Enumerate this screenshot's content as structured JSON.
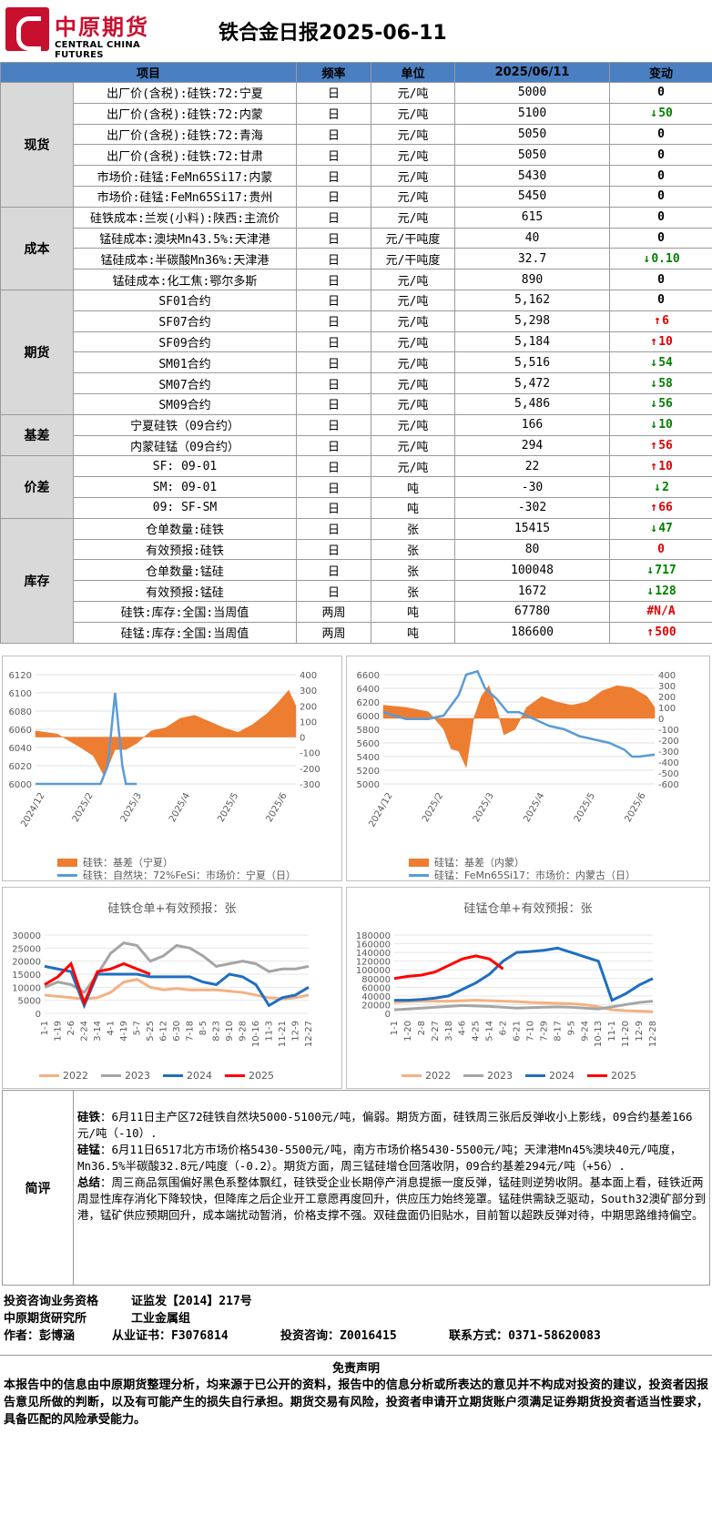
{
  "header": {
    "logo_cn": "中原期货",
    "logo_en": "CENTRAL CHINA FUTURES",
    "title": "铁合金日报2025-06-11"
  },
  "table": {
    "columns": [
      "项目",
      "频率",
      "单位",
      "2025/06/11",
      "变动"
    ],
    "groups": [
      {
        "category": "现货",
        "rows": [
          {
            "item": "出厂价(含税):硅铁:72:宁夏",
            "freq": "日",
            "unit": "元/吨",
            "value": "5000",
            "change": "0",
            "dir": "zero"
          },
          {
            "item": "出厂价(含税):硅铁:72:内蒙",
            "freq": "日",
            "unit": "元/吨",
            "value": "5100",
            "change": "50",
            "dir": "down"
          },
          {
            "item": "出厂价(含税):硅铁:72:青海",
            "freq": "日",
            "unit": "元/吨",
            "value": "5050",
            "change": "0",
            "dir": "zero"
          },
          {
            "item": "出厂价(含税):硅铁:72:甘肃",
            "freq": "日",
            "unit": "元/吨",
            "value": "5050",
            "change": "0",
            "dir": "zero"
          },
          {
            "item": "市场价:硅锰:FeMn65Si17:内蒙",
            "freq": "日",
            "unit": "元/吨",
            "value": "5430",
            "change": "0",
            "dir": "zero"
          },
          {
            "item": "市场价:硅锰:FeMn65Si17:贵州",
            "freq": "日",
            "unit": "元/吨",
            "value": "5450",
            "change": "0",
            "dir": "zero"
          }
        ]
      },
      {
        "category": "成本",
        "rows": [
          {
            "item": "硅铁成本:兰炭(小料):陕西:主流价",
            "freq": "日",
            "unit": "元/吨",
            "value": "615",
            "change": "0",
            "dir": "zero"
          },
          {
            "item": "锰硅成本:澳块Mn43.5%:天津港",
            "freq": "日",
            "unit": "元/干吨度",
            "value": "40",
            "change": "0",
            "dir": "zero"
          },
          {
            "item": "锰硅成本:半碳酸Mn36%:天津港",
            "freq": "日",
            "unit": "元/干吨度",
            "value": "32.7",
            "change": "0.10",
            "dir": "down"
          },
          {
            "item": "锰硅成本:化工焦:鄂尔多斯",
            "freq": "日",
            "unit": "元/吨",
            "value": "890",
            "change": "0",
            "dir": "zero"
          }
        ]
      },
      {
        "category": "期货",
        "rows": [
          {
            "item": "SF01合约",
            "freq": "日",
            "unit": "元/吨",
            "value": "5,162",
            "change": "0",
            "dir": "zero"
          },
          {
            "item": "SF07合约",
            "freq": "日",
            "unit": "元/吨",
            "value": "5,298",
            "change": "6",
            "dir": "up"
          },
          {
            "item": "SF09合约",
            "freq": "日",
            "unit": "元/吨",
            "value": "5,184",
            "change": "10",
            "dir": "up"
          },
          {
            "item": "SM01合约",
            "freq": "日",
            "unit": "元/吨",
            "value": "5,516",
            "change": "54",
            "dir": "down"
          },
          {
            "item": "SM07合约",
            "freq": "日",
            "unit": "元/吨",
            "value": "5,472",
            "change": "58",
            "dir": "down"
          },
          {
            "item": "SM09合约",
            "freq": "日",
            "unit": "元/吨",
            "value": "5,486",
            "change": "56",
            "dir": "down"
          }
        ]
      },
      {
        "category": "基差",
        "rows": [
          {
            "item": "宁夏硅铁（09合约）",
            "freq": "日",
            "unit": "元/吨",
            "value": "166",
            "change": "10",
            "dir": "down"
          },
          {
            "item": "内蒙硅锰（09合约）",
            "freq": "日",
            "unit": "元/吨",
            "value": "294",
            "change": "56",
            "dir": "up"
          }
        ]
      },
      {
        "category": "价差",
        "rows": [
          {
            "item": "SF: 09-01",
            "freq": "日",
            "unit": "元/吨",
            "value": "22",
            "change": "10",
            "dir": "up"
          },
          {
            "item": "SM: 09-01",
            "freq": "日",
            "unit": "吨",
            "value": "-30",
            "change": "2",
            "dir": "down"
          },
          {
            "item": "09: SF-SM",
            "freq": "日",
            "unit": "吨",
            "value": "-302",
            "change": "66",
            "dir": "up"
          }
        ]
      },
      {
        "category": "库存",
        "rows": [
          {
            "item": "仓单数量:硅铁",
            "freq": "日",
            "unit": "张",
            "value": "15415",
            "change": "47",
            "dir": "down"
          },
          {
            "item": "有效预报:硅铁",
            "freq": "日",
            "unit": "张",
            "value": "80",
            "change": "0",
            "dir": "zero-red"
          },
          {
            "item": "仓单数量:锰硅",
            "freq": "日",
            "unit": "张",
            "value": "100048",
            "change": "717",
            "dir": "down"
          },
          {
            "item": "有效预报:锰硅",
            "freq": "日",
            "unit": "张",
            "value": "1672",
            "change": "128",
            "dir": "down"
          },
          {
            "item": "硅铁:库存:全国:当周值",
            "freq": "两周",
            "unit": "吨",
            "value": "67780",
            "change": "#N/A",
            "dir": "na"
          },
          {
            "item": "硅锰:库存:全国:当周值",
            "freq": "两周",
            "unit": "吨",
            "value": "186600",
            "change": "500",
            "dir": "up"
          }
        ]
      }
    ]
  },
  "colors": {
    "up": "#e00000",
    "down": "#008000",
    "header_blue": "#4a7fc1",
    "bar_orange": "#ed7d31",
    "line_blue": "#5b9bd5"
  },
  "chart_data": [
    {
      "type": "bar+line",
      "xlabels": [
        "2024/12",
        "2025/2",
        "2025/3",
        "2025/4",
        "2025/5",
        "2025/6"
      ],
      "y_left": [
        6000,
        6020,
        6040,
        6060,
        6080,
        6100,
        6120
      ],
      "y_right": [
        -300,
        -200,
        -100,
        0,
        100,
        200,
        300,
        400
      ],
      "legend": [
        "硅铁：基差（宁夏）",
        "硅铁：自然块：72%FeSi：市场价：宁夏（日）"
      ],
      "line_points": [
        [
          0,
          6000
        ],
        [
          8,
          6000
        ],
        [
          14,
          6000
        ],
        [
          18,
          6000
        ],
        [
          20,
          6020
        ],
        [
          21,
          6060
        ],
        [
          22,
          6100
        ],
        [
          23,
          6060
        ],
        [
          24,
          6020
        ],
        [
          25,
          6000
        ],
        [
          28,
          6000
        ]
      ],
      "bar_points": [
        [
          0,
          40
        ],
        [
          6,
          20
        ],
        [
          12,
          -60
        ],
        [
          16,
          -120
        ],
        [
          19,
          -250
        ],
        [
          22,
          -80
        ],
        [
          25,
          -80
        ],
        [
          28,
          -40
        ],
        [
          32,
          40
        ],
        [
          36,
          60
        ],
        [
          40,
          120
        ],
        [
          44,
          140
        ],
        [
          48,
          100
        ],
        [
          52,
          60
        ],
        [
          56,
          30
        ],
        [
          60,
          80
        ],
        [
          64,
          150
        ],
        [
          67,
          220
        ],
        [
          70,
          300
        ],
        [
          72,
          200
        ]
      ]
    },
    {
      "type": "bar+line",
      "xlabels": [
        "2024/12",
        "2025/2",
        "2025/3",
        "2025/4",
        "2025/5",
        "2025/6"
      ],
      "y_left": [
        5000,
        5200,
        5400,
        5600,
        5800,
        6000,
        6200,
        6400,
        6600
      ],
      "y_right": [
        -600,
        -500,
        -400,
        -300,
        -200,
        -100,
        0,
        100,
        200,
        300,
        400
      ],
      "legend": [
        "硅锰：基差（内蒙）",
        "硅锰：FeMn65Si17：市场价：内蒙古（日）"
      ],
      "line_points": [
        [
          0,
          6050
        ],
        [
          6,
          5950
        ],
        [
          12,
          5950
        ],
        [
          16,
          6000
        ],
        [
          20,
          6300
        ],
        [
          22,
          6600
        ],
        [
          25,
          6650
        ],
        [
          27,
          6400
        ],
        [
          30,
          6250
        ],
        [
          33,
          6050
        ],
        [
          36,
          6050
        ],
        [
          40,
          5950
        ],
        [
          44,
          5850
        ],
        [
          48,
          5800
        ],
        [
          52,
          5700
        ],
        [
          56,
          5650
        ],
        [
          60,
          5600
        ],
        [
          64,
          5500
        ],
        [
          66,
          5400
        ],
        [
          68,
          5400
        ],
        [
          72,
          5430
        ]
      ],
      "bar_points": [
        [
          0,
          120
        ],
        [
          6,
          100
        ],
        [
          12,
          60
        ],
        [
          16,
          -100
        ],
        [
          18,
          -280
        ],
        [
          20,
          -300
        ],
        [
          22,
          -450
        ],
        [
          24,
          0
        ],
        [
          26,
          200
        ],
        [
          28,
          300
        ],
        [
          30,
          100
        ],
        [
          32,
          -150
        ],
        [
          35,
          -100
        ],
        [
          38,
          100
        ],
        [
          42,
          200
        ],
        [
          46,
          150
        ],
        [
          50,
          120
        ],
        [
          54,
          150
        ],
        [
          58,
          250
        ],
        [
          62,
          300
        ],
        [
          66,
          280
        ],
        [
          70,
          200
        ],
        [
          72,
          100
        ]
      ]
    },
    {
      "type": "line",
      "title": "硅铁仓单+有效预报：张",
      "xlabels": [
        "1-1",
        "1-19",
        "2-6",
        "2-24",
        "3-14",
        "4-1",
        "4-19",
        "5-7",
        "5-25",
        "6-12",
        "6-30",
        "7-18",
        "8-5",
        "8-23",
        "9-10",
        "9-28",
        "10-16",
        "11-3",
        "11-21",
        "12-9",
        "12-27"
      ],
      "y_ticks": [
        0,
        5000,
        10000,
        15000,
        20000,
        25000,
        30000
      ],
      "series": [
        {
          "name": "2022",
          "color": "#f4b183",
          "values": [
            7000,
            6500,
            6000,
            5500,
            6000,
            8000,
            12000,
            13000,
            10000,
            9000,
            9500,
            9000,
            9000,
            9000,
            8500,
            8000,
            7000,
            6000,
            5500,
            6000,
            7000
          ]
        },
        {
          "name": "2023",
          "color": "#a5a5a5",
          "values": [
            10000,
            12000,
            11000,
            8000,
            15000,
            23000,
            27000,
            26000,
            20000,
            22000,
            26000,
            25000,
            22000,
            18000,
            19000,
            20000,
            19000,
            16000,
            17000,
            17000,
            18000
          ]
        },
        {
          "name": "2024",
          "color": "#1f6fbf",
          "values": [
            18000,
            17000,
            16000,
            3000,
            15000,
            15000,
            15000,
            15000,
            14000,
            14000,
            14000,
            14000,
            12000,
            11000,
            15000,
            14000,
            11000,
            3000,
            6000,
            7000,
            10000
          ]
        },
        {
          "name": "2025",
          "color": "#ff0000",
          "values": [
            11000,
            14000,
            19000,
            4000,
            16000,
            17000,
            19000,
            17000,
            15000,
            null,
            null,
            null,
            null,
            null,
            null,
            null,
            null,
            null,
            null,
            null,
            null
          ]
        }
      ]
    },
    {
      "type": "line",
      "title": "硅锰仓单+有效预报：张",
      "xlabels": [
        "1-1",
        "1-20",
        "2-8",
        "2-27",
        "3-18",
        "4-6",
        "4-25",
        "5-14",
        "6-2",
        "6-21",
        "7-10",
        "7-29",
        "8-17",
        "9-5",
        "9-24",
        "10-13",
        "11-1",
        "11-20",
        "12-9",
        "12-28"
      ],
      "y_ticks": [
        0,
        20000,
        40000,
        60000,
        80000,
        100000,
        120000,
        140000,
        160000,
        180000
      ],
      "series": [
        {
          "name": "2022",
          "color": "#f4b183",
          "values": [
            25000,
            27000,
            28000,
            28000,
            28000,
            29000,
            30000,
            29000,
            28000,
            27000,
            25000,
            24000,
            23000,
            22000,
            20000,
            15000,
            8000,
            6000,
            5000,
            4000
          ]
        },
        {
          "name": "2023",
          "color": "#a5a5a5",
          "values": [
            8000,
            10000,
            12000,
            14000,
            16000,
            18000,
            17000,
            16000,
            14000,
            12000,
            13000,
            14000,
            15000,
            14000,
            12000,
            10000,
            15000,
            20000,
            25000,
            28000
          ]
        },
        {
          "name": "2024",
          "color": "#1f6fbf",
          "values": [
            30000,
            30000,
            32000,
            35000,
            40000,
            55000,
            70000,
            90000,
            120000,
            140000,
            142000,
            145000,
            150000,
            140000,
            130000,
            120000,
            30000,
            45000,
            65000,
            80000
          ]
        },
        {
          "name": "2025",
          "color": "#ff0000",
          "values": [
            80000,
            85000,
            88000,
            95000,
            110000,
            125000,
            132000,
            125000,
            102000,
            null,
            null,
            null,
            null,
            null,
            null,
            null,
            null,
            null,
            null,
            null
          ]
        }
      ]
    }
  ],
  "commentary": {
    "label": "简评",
    "si_label": "硅铁",
    "si_text": "：6月11日主产区72硅铁自然块5000-5100元/吨，偏弱。期货方面，硅铁周三张后反弹收小上影线，09合约基差166元/吨（-10）.",
    "mn_label": "硅锰",
    "mn_text": "：6月11日6517北方市场价格5430-5500元/吨，南方市场价格5430-5500元/吨；天津港Mn45%澳块40元/吨度，Mn36.5%半碳酸32.8元/吨度（-0.2）。期货方面，周三锰硅增仓回落收阴，09合约基差294元/吨（+56）.",
    "sum_label": "总结",
    "sum_text": "：周三商品氛围偏好黑色系整体飘红，硅铁受企业长期停产消息提振一度反弹，锰硅则逆势收阴。基本面上看，硅铁近两周显性库存消化下降较快，但降库之后企业开工意愿再度回升，供应压力始终笼罩。锰硅供需缺乏驱动，South32澳矿部分到港，锰矿供应预期回升，成本端扰动暂消，价格支撑不强。双硅盘面仍旧贴水，目前暂以超跌反弹对待，中期思路维持偏空。"
  },
  "footer": {
    "line1_a": "投资咨询业务资格",
    "line1_b": "证监发【2014】217号",
    "line2_a": "中原期货研究所",
    "line2_b": "工业金属组",
    "author_label": "作者：",
    "author": "彭博涵",
    "cert_label": "从业证书：",
    "cert": "F3076814",
    "advisor_label": "投资咨询：",
    "advisor": "Z0016415",
    "contact_label": "联系方式：",
    "contact": "0371-58620083",
    "disclaimer_title": "免责声明",
    "disclaimer": "本报告中的信息由中原期货整理分析，均来源于已公开的资料，报告中的信息分析或所表达的意见并不构成对投资的建议，投资者因报告意见所做的判断，以及有可能产生的损失自行承担。期货交易有风险，投资者申请开立期货账户须满足证券期货投资者适当性要求，具备匹配的风险承受能力。"
  }
}
